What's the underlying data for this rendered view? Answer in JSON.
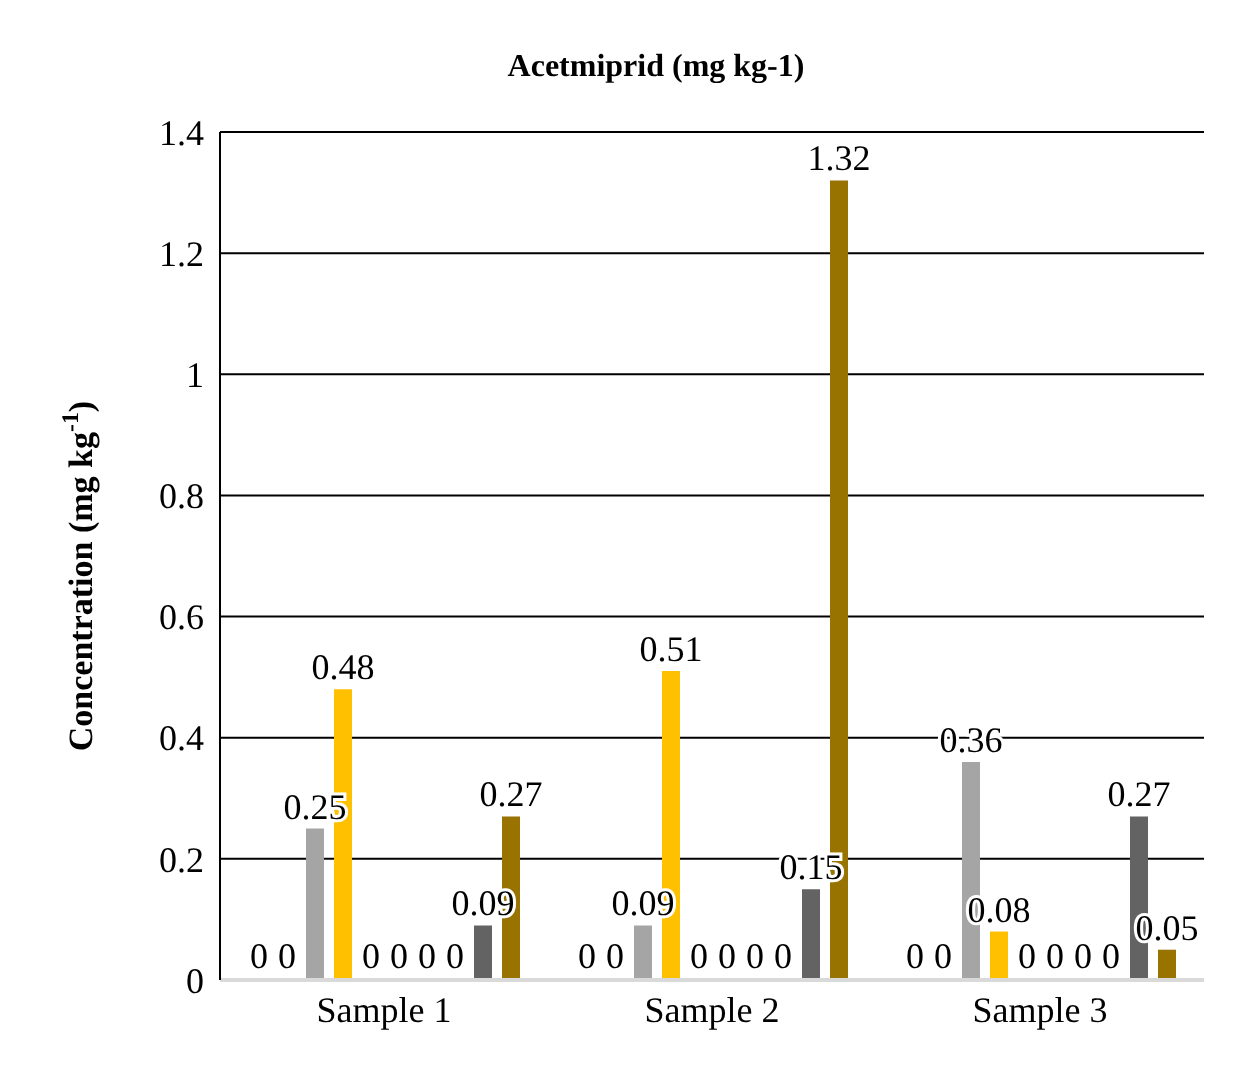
{
  "chart_data": {
    "type": "bar",
    "title": "Acetmiprid (mg kg-1)",
    "ylabel": "Concentration (mg kg$^{-1}$)",
    "categories": [
      "Sample 1",
      "Sample 2",
      "Sample 3"
    ],
    "series": [
      {
        "color": "#4472c4",
        "values": [
          0,
          0,
          0
        ]
      },
      {
        "color": "#ed7d31",
        "values": [
          0,
          0,
          0
        ]
      },
      {
        "color": "#a5a5a5",
        "values": [
          0.25,
          0.09,
          0.36
        ]
      },
      {
        "color": "#ffc000",
        "values": [
          0.48,
          0.51,
          0.08
        ]
      },
      {
        "color": "#5b9bd5",
        "values": [
          0,
          0,
          0
        ]
      },
      {
        "color": "#70ad47",
        "values": [
          0,
          0,
          0
        ]
      },
      {
        "color": "#264478",
        "values": [
          0,
          0,
          0
        ]
      },
      {
        "color": "#9e480e",
        "values": [
          0,
          0,
          0
        ]
      },
      {
        "color": "#636363",
        "values": [
          0.09,
          0.15,
          0.27
        ]
      },
      {
        "color": "#997300",
        "values": [
          0.27,
          1.32,
          0.05
        ]
      }
    ],
    "ylim": [
      0,
      1.4
    ],
    "yticks": [
      0,
      0.2,
      0.4,
      0.6,
      0.8,
      1,
      1.2,
      1.4
    ],
    "grid": "y",
    "data_labels": true,
    "legend": false
  }
}
